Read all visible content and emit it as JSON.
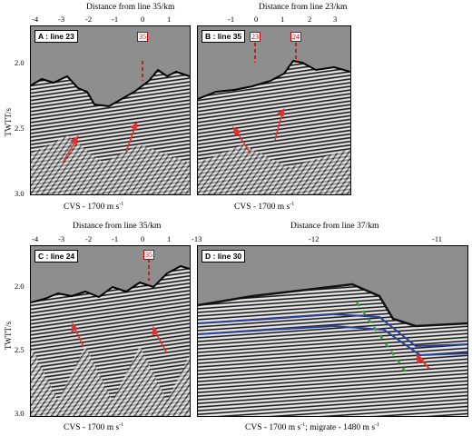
{
  "panelA": {
    "label": "A : line 23",
    "top_title": "Distance from line 35/km",
    "x_ticks": [
      "-4",
      "-3",
      "-2",
      "-1",
      "0",
      "1"
    ],
    "markers": [
      "35"
    ],
    "caption": "CVS - 1700 m s",
    "caption_sup": "-1"
  },
  "panelB": {
    "label": "B : line 35",
    "top_title": "Distance from line 23/km",
    "x_ticks": [
      "-1",
      "0",
      "1",
      "2",
      "3"
    ],
    "markers": [
      "23",
      "24"
    ],
    "caption": "CVS - 1700 m s",
    "caption_sup": "-1"
  },
  "panelC": {
    "label": "C : line 24",
    "top_title": "Distance from line 35/km",
    "x_ticks": [
      "-4",
      "-3",
      "-2",
      "-1",
      "0",
      "1"
    ],
    "markers": [
      "35"
    ],
    "caption": "CVS - 1700 m s",
    "caption_sup": "-1"
  },
  "panelD": {
    "label": "D : line 30",
    "top_title": "Distance from line 37/km",
    "x_ticks": [
      "-13",
      "-12",
      "-11"
    ],
    "caption": "CVS - 1700 m s",
    "caption_sup": "-1",
    "caption_tail": "; migrate - 1480 m s",
    "caption_tail_sup": "-1"
  },
  "y_axis": {
    "title": "TWTT/s",
    "ticks": [
      "2.0",
      "2.5",
      "3.0"
    ]
  },
  "colors": {
    "seafloor_gray": "#8e8e8e",
    "arrow_red": "#e03030",
    "horizon_blue": "#2a3fa0",
    "fault_green": "#3aa040"
  }
}
